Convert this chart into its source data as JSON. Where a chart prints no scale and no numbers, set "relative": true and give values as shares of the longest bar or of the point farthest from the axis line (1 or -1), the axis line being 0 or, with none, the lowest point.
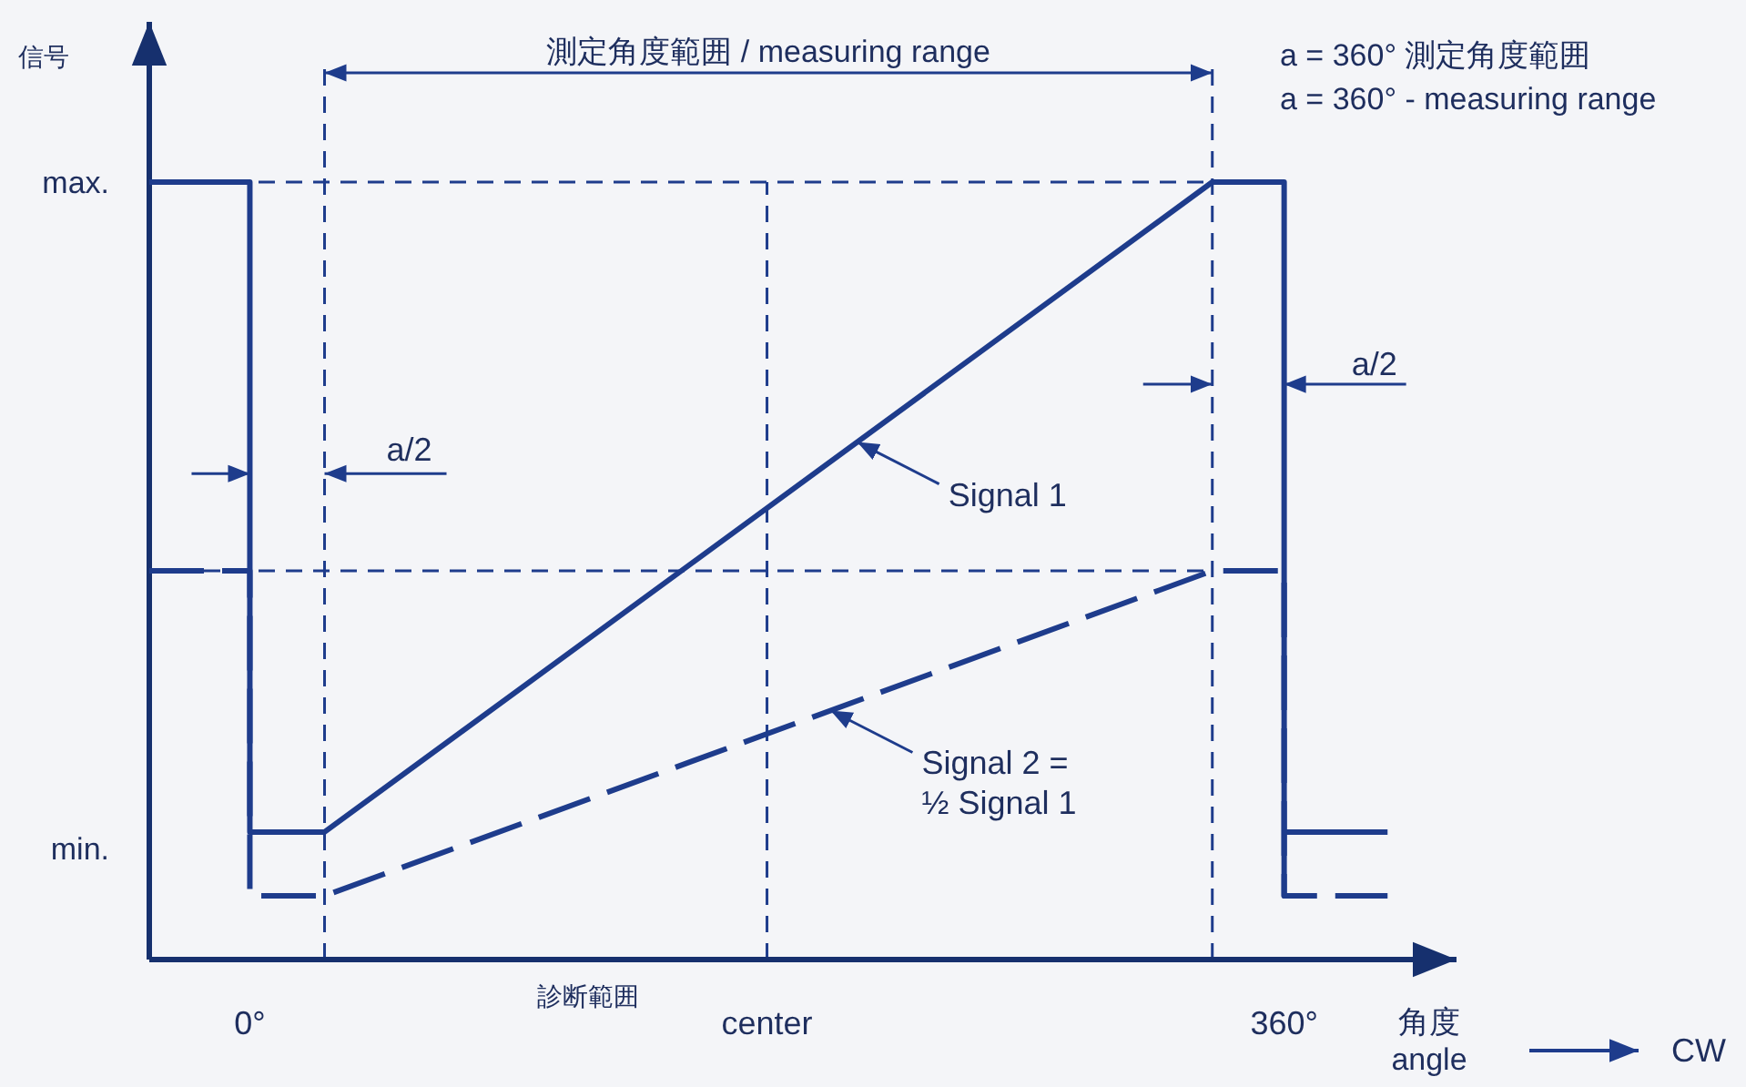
{
  "chart_data": {
    "type": "line",
    "relative": true,
    "xlabel": "角度\nangle",
    "xlim": [
      -35,
      420
    ],
    "xticks": [
      {
        "value": 0,
        "label": "0°"
      },
      {
        "value": 180,
        "label": "center"
      },
      {
        "value": 360,
        "label": "360°"
      }
    ],
    "series": [
      {
        "name": "Signal 1",
        "color": "#1e3c8c",
        "line_style": "solid",
        "x": [
          -35,
          0,
          0,
          26,
          335,
          360,
          360,
          360,
          396
        ],
        "values": [
          1,
          1,
          0.164,
          0.164,
          1,
          1,
          0.082,
          0.164,
          0.164
        ]
      },
      {
        "name": "Signal 2 =\n½ Signal 1",
        "color": "#1e3c8c",
        "line_style": "dashed",
        "x": [
          -35,
          0,
          0,
          26,
          335,
          360,
          360,
          396
        ],
        "values": [
          0.5,
          0.5,
          0.082,
          0.082,
          0.5,
          0.5,
          0.082,
          0.082
        ]
      }
    ],
    "ref_lines": [
      {
        "axis": "x",
        "value": 26,
        "line_style": "dashed",
        "color": "#1e3c8c"
      },
      {
        "axis": "x",
        "value": 180,
        "line_style": "dashed",
        "color": "#1e3c8c"
      },
      {
        "axis": "x",
        "value": 335,
        "line_style": "dashed",
        "color": "#1e3c8c"
      },
      {
        "axis": "y",
        "value": 1,
        "line_style": "dashed",
        "color": "#1e3c8c"
      },
      {
        "axis": "y",
        "value": 0.5,
        "line_style": "dashed",
        "color": "#1e3c8c"
      }
    ],
    "annotations": [
      "max.",
      "min.",
      "測定角度範囲 / measuring range",
      {
        "text": "a/2",
        "x": 26,
        "y": 0.625
      },
      {
        "text": "a/2",
        "x": 360,
        "y": 0.74
      },
      "a = 360° 測定角度範囲",
      "a = 360° - measuring range",
      "診断範囲",
      "CW",
      "信号"
    ]
  }
}
